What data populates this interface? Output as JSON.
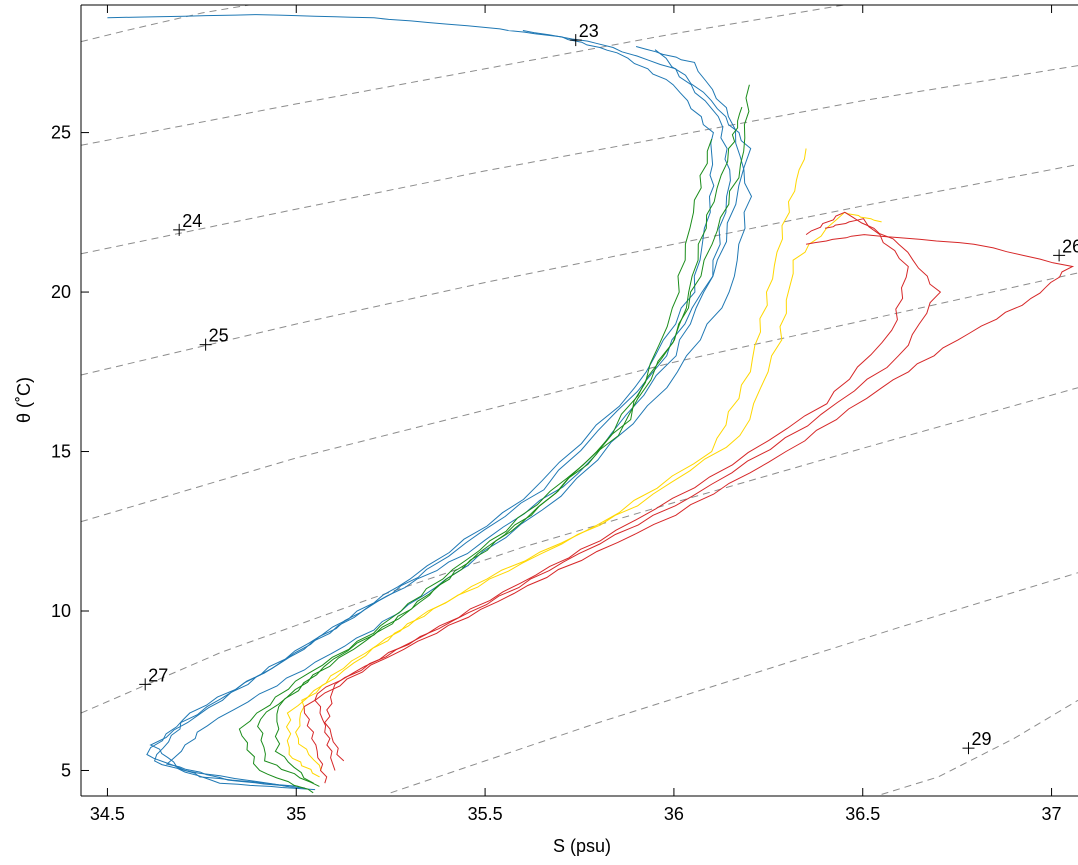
{
  "chart_data": {
    "type": "line",
    "title": "",
    "xlabel": "S (psu)",
    "ylabel": "θ (˚C)",
    "xlim": [
      34.43,
      37.07
    ],
    "ylim": [
      4.2,
      29.0
    ],
    "xticks": [
      34.5,
      35,
      35.5,
      36,
      36.5,
      37
    ],
    "xtick_labels": [
      "34.5",
      "35",
      "35.5",
      "36",
      "36.5",
      "37"
    ],
    "yticks": [
      5,
      10,
      15,
      20,
      25
    ],
    "ytick_labels": [
      "5",
      "10",
      "15",
      "20",
      "25"
    ],
    "grid": false,
    "legend": "none",
    "isopycnals": [
      {
        "label": "23",
        "x": 35.74,
        "y": 27.9
      },
      {
        "label": "24",
        "x": 34.69,
        "y": 21.95
      },
      {
        "label": "25",
        "x": 34.76,
        "y": 18.35
      },
      {
        "label": "26",
        "x": 37.02,
        "y": 21.15
      },
      {
        "label": "27",
        "x": 34.6,
        "y": 7.7
      },
      {
        "label": "29",
        "x": 36.78,
        "y": 5.7
      }
    ],
    "isopycnal_lines": [
      {
        "x": [
          34.43,
          34.55,
          34.75,
          35.0,
          35.3,
          35.6,
          35.8,
          36.2
        ],
        "y": [
          27.85,
          28.2,
          28.75,
          29.25,
          29.8,
          30.3,
          30.6,
          31.3
        ]
      },
      {
        "x": [
          34.43,
          35.0,
          35.5,
          36.0,
          36.5,
          37.07
        ],
        "y": [
          24.6,
          25.9,
          27.0,
          28.1,
          29.1,
          30.2
        ]
      },
      {
        "x": [
          34.43,
          35.0,
          35.5,
          36.0,
          36.5,
          37.07
        ],
        "y": [
          21.2,
          22.6,
          23.8,
          24.9,
          26.0,
          27.1
        ]
      },
      {
        "x": [
          34.43,
          35.0,
          35.5,
          36.0,
          36.5,
          37.07
        ],
        "y": [
          17.4,
          19.0,
          20.3,
          21.5,
          22.7,
          24.0
        ]
      },
      {
        "x": [
          34.43,
          35.0,
          35.5,
          36.0,
          36.5,
          37.07
        ],
        "y": [
          12.8,
          14.8,
          16.3,
          17.8,
          19.1,
          20.6
        ]
      },
      {
        "x": [
          34.43,
          34.8,
          35.2,
          35.6,
          36.0,
          36.5,
          37.07
        ],
        "y": [
          6.8,
          8.7,
          10.4,
          12.0,
          13.4,
          15.1,
          17.0
        ]
      },
      {
        "x": [
          35.25,
          35.5,
          35.8,
          36.2,
          36.6,
          37.07
        ],
        "y": [
          4.3,
          5.3,
          6.5,
          8.0,
          9.5,
          11.2
        ]
      },
      {
        "x": [
          36.55,
          36.7,
          36.9,
          37.07
        ],
        "y": [
          4.25,
          4.8,
          6.0,
          7.2
        ]
      }
    ],
    "series": [
      {
        "color": "#1f78b4",
        "values": [
          [
            35.05,
            4.4
          ],
          [
            34.8,
            4.6
          ],
          [
            34.62,
            5.3
          ],
          [
            34.7,
            6.5
          ],
          [
            34.9,
            8.0
          ],
          [
            35.1,
            9.5
          ],
          [
            35.3,
            11.0
          ],
          [
            35.6,
            13.5
          ],
          [
            35.9,
            17.0
          ],
          [
            36.05,
            20.0
          ],
          [
            36.1,
            23.0
          ],
          [
            36.1,
            25.0
          ],
          [
            36.0,
            26.5
          ],
          [
            35.85,
            27.5
          ],
          [
            35.7,
            28.0
          ],
          [
            35.5,
            28.3
          ],
          [
            35.2,
            28.6
          ],
          [
            34.9,
            28.7
          ],
          [
            34.5,
            28.6
          ]
        ]
      },
      {
        "color": "#1f78b4",
        "values": [
          [
            35.0,
            4.5
          ],
          [
            34.75,
            4.8
          ],
          [
            34.6,
            5.5
          ],
          [
            34.72,
            6.8
          ],
          [
            34.95,
            8.3
          ],
          [
            35.15,
            9.8
          ],
          [
            35.35,
            11.3
          ],
          [
            35.65,
            13.8
          ],
          [
            35.95,
            17.5
          ],
          [
            36.1,
            20.5
          ],
          [
            36.15,
            23.5
          ],
          [
            36.12,
            25.5
          ],
          [
            36.0,
            27.0
          ],
          [
            35.8,
            27.8
          ],
          [
            35.6,
            28.2
          ]
        ]
      },
      {
        "color": "#1f78b4",
        "values": [
          [
            35.02,
            4.45
          ],
          [
            34.82,
            4.7
          ],
          [
            34.66,
            5.2
          ],
          [
            34.76,
            6.4
          ],
          [
            34.98,
            7.9
          ],
          [
            35.2,
            9.4
          ],
          [
            35.4,
            11.0
          ],
          [
            35.7,
            13.6
          ],
          [
            35.98,
            17.0
          ],
          [
            36.15,
            20.0
          ],
          [
            36.2,
            23.0
          ],
          [
            36.15,
            25.5
          ],
          [
            36.05,
            27.2
          ],
          [
            35.9,
            27.7
          ]
        ]
      },
      {
        "color": "#1f78b4",
        "values": [
          [
            34.98,
            4.5
          ],
          [
            34.7,
            5.0
          ],
          [
            34.62,
            5.8
          ],
          [
            34.8,
            7.2
          ],
          [
            35.0,
            8.7
          ],
          [
            35.2,
            10.2
          ],
          [
            35.45,
            11.8
          ],
          [
            35.75,
            14.3
          ],
          [
            36.0,
            18.0
          ],
          [
            36.12,
            21.0
          ],
          [
            36.2,
            24.5
          ],
          [
            36.1,
            26.0
          ],
          [
            35.95,
            27.6
          ]
        ]
      },
      {
        "color": "#1a8c1a",
        "values": [
          [
            35.05,
            4.3
          ],
          [
            34.9,
            5.0
          ],
          [
            34.85,
            6.3
          ],
          [
            35.0,
            7.8
          ],
          [
            35.2,
            9.3
          ],
          [
            35.35,
            10.7
          ],
          [
            35.55,
            12.5
          ],
          [
            35.8,
            15.0
          ],
          [
            36.0,
            18.5
          ],
          [
            36.1,
            21.5
          ],
          [
            36.18,
            24.0
          ],
          [
            36.2,
            26.5
          ]
        ]
      },
      {
        "color": "#1a8c1a",
        "values": [
          [
            35.06,
            4.5
          ],
          [
            34.92,
            5.3
          ],
          [
            34.9,
            6.6
          ],
          [
            35.05,
            8.0
          ],
          [
            35.25,
            9.6
          ],
          [
            35.4,
            11.0
          ],
          [
            35.6,
            12.8
          ],
          [
            35.85,
            15.5
          ],
          [
            36.02,
            19.0
          ],
          [
            36.08,
            22.0
          ],
          [
            36.15,
            24.5
          ],
          [
            36.18,
            25.8
          ]
        ]
      },
      {
        "color": "#1a8c1a",
        "values": [
          [
            35.04,
            4.6
          ],
          [
            34.95,
            5.6
          ],
          [
            34.95,
            7.0
          ],
          [
            35.1,
            8.5
          ],
          [
            35.3,
            10.0
          ],
          [
            35.45,
            11.5
          ],
          [
            35.65,
            13.3
          ],
          [
            35.88,
            16.0
          ],
          [
            36.0,
            19.5
          ],
          [
            36.05,
            22.5
          ],
          [
            36.1,
            24.8
          ]
        ]
      },
      {
        "color": "#ffd700",
        "values": [
          [
            35.06,
            4.8
          ],
          [
            34.98,
            5.5
          ],
          [
            34.98,
            6.8
          ],
          [
            35.12,
            8.2
          ],
          [
            35.3,
            9.6
          ],
          [
            35.5,
            11.0
          ],
          [
            35.8,
            12.7
          ],
          [
            36.1,
            15.0
          ],
          [
            36.2,
            17.5
          ],
          [
            36.25,
            20.0
          ],
          [
            36.3,
            22.5
          ],
          [
            36.35,
            24.5
          ]
        ]
      },
      {
        "color": "#ffd700",
        "values": [
          [
            35.07,
            5.0
          ],
          [
            35.0,
            6.0
          ],
          [
            35.02,
            7.2
          ],
          [
            35.18,
            8.6
          ],
          [
            35.35,
            10.0
          ],
          [
            35.6,
            11.5
          ],
          [
            35.9,
            13.3
          ],
          [
            36.18,
            15.5
          ],
          [
            36.28,
            18.5
          ],
          [
            36.32,
            21.0
          ],
          [
            36.45,
            22.5
          ],
          [
            36.55,
            22.2
          ]
        ]
      },
      {
        "color": "#d62728",
        "values": [
          [
            35.08,
            4.6
          ],
          [
            35.05,
            5.8
          ],
          [
            35.02,
            7.0
          ],
          [
            35.2,
            8.3
          ],
          [
            35.45,
            9.8
          ],
          [
            35.7,
            11.3
          ],
          [
            36.0,
            13.0
          ],
          [
            36.3,
            15.0
          ],
          [
            36.55,
            17.0
          ],
          [
            36.75,
            18.5
          ],
          [
            36.95,
            19.8
          ],
          [
            37.05,
            20.8
          ],
          [
            36.8,
            21.5
          ],
          [
            36.5,
            21.8
          ],
          [
            36.35,
            21.5
          ]
        ]
      },
      {
        "color": "#d62728",
        "values": [
          [
            35.1,
            5.0
          ],
          [
            35.08,
            6.2
          ],
          [
            35.05,
            7.4
          ],
          [
            35.25,
            8.7
          ],
          [
            35.5,
            10.2
          ],
          [
            35.75,
            11.8
          ],
          [
            36.05,
            13.6
          ],
          [
            36.35,
            15.8
          ],
          [
            36.6,
            18.0
          ],
          [
            36.7,
            20.0
          ],
          [
            36.6,
            21.5
          ],
          [
            36.45,
            22.5
          ],
          [
            36.35,
            21.8
          ]
        ]
      },
      {
        "color": "#d62728",
        "values": [
          [
            35.12,
            5.3
          ],
          [
            35.08,
            6.5
          ],
          [
            35.1,
            7.7
          ],
          [
            35.3,
            9.0
          ],
          [
            35.55,
            10.6
          ],
          [
            35.8,
            12.2
          ],
          [
            36.1,
            14.2
          ],
          [
            36.4,
            16.5
          ],
          [
            36.58,
            18.8
          ],
          [
            36.62,
            20.8
          ],
          [
            36.5,
            22.3
          ],
          [
            36.4,
            22.0
          ]
        ]
      }
    ]
  }
}
